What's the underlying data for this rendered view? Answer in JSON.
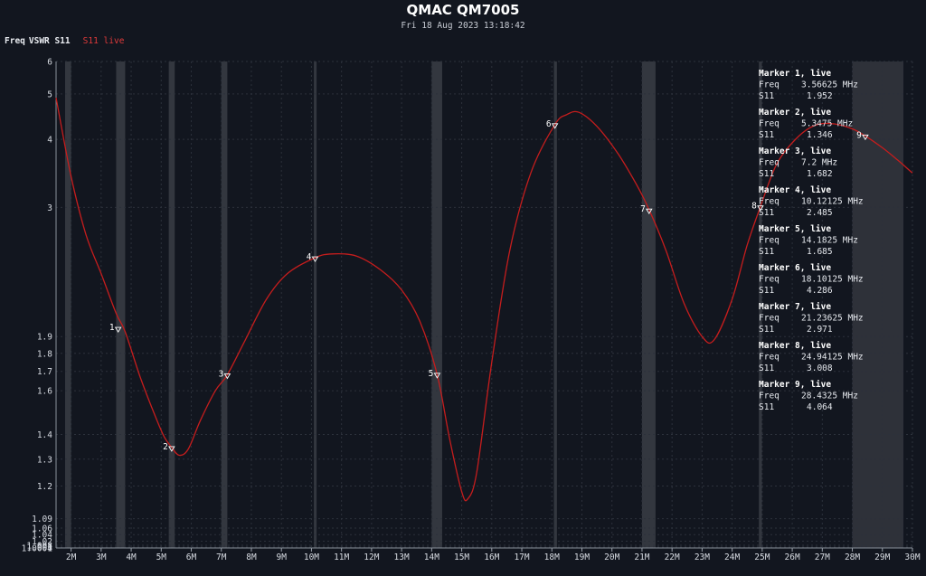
{
  "header": {
    "title": "QMAC QM7005",
    "timestamp": "Fri 18 Aug 2023 13:18:42"
  },
  "legend": {
    "freq_label": "Freq",
    "vswr_label": "VSWR S11",
    "series_label": "S11 live",
    "series_color": "#c51d1d"
  },
  "chart_data": {
    "type": "line",
    "title": "QMAC QM7005",
    "subtitle": "Fri 18 Aug 2023 13:18:42",
    "xlabel": "",
    "ylabel": "",
    "x_unit": "MHz",
    "xlim": [
      1.5,
      30
    ],
    "y_scale": "vswr (reflection coefficient)",
    "ylim": [
      1,
      6
    ],
    "x_ticks": [
      "2M",
      "3M",
      "4M",
      "5M",
      "6M",
      "7M",
      "8M",
      "9M",
      "10M",
      "11M",
      "12M",
      "13M",
      "14M",
      "15M",
      "16M",
      "17M",
      "18M",
      "19M",
      "20M",
      "21M",
      "22M",
      "23M",
      "24M",
      "25M",
      "26M",
      "27M",
      "28M",
      "29M",
      "30M"
    ],
    "y_ticks": [
      "6",
      "5",
      "4",
      "3",
      "1.9",
      "1.8",
      "1.7",
      "1.6",
      "1.4",
      "1.3",
      "1.2",
      "1.09",
      "1.06",
      "1.04",
      "1.02",
      "1.008",
      "1.003",
      "1.0004",
      "1"
    ],
    "grid": true,
    "bands": [
      {
        "start": 1.8,
        "end": 2.0,
        "shade": "dark"
      },
      {
        "start": 3.5,
        "end": 3.8,
        "shade": "dark"
      },
      {
        "start": 5.25,
        "end": 5.45,
        "shade": "dark"
      },
      {
        "start": 7.0,
        "end": 7.2,
        "shade": "dark"
      },
      {
        "start": 10.1,
        "end": 10.15,
        "shade": "dark"
      },
      {
        "start": 14.0,
        "end": 14.35,
        "shade": "dark"
      },
      {
        "start": 18.068,
        "end": 18.168,
        "shade": "dark"
      },
      {
        "start": 21.0,
        "end": 21.45,
        "shade": "dark"
      },
      {
        "start": 24.89,
        "end": 24.99,
        "shade": "dark"
      },
      {
        "start": 28.0,
        "end": 29.7,
        "shade": "light"
      }
    ],
    "series": [
      {
        "name": "S11 live",
        "color": "#c51d1d",
        "x": [
          1.5,
          2.0,
          2.5,
          3.0,
          3.5,
          3.8,
          4.3,
          4.8,
          5.1,
          5.35,
          5.6,
          5.9,
          6.3,
          6.8,
          7.2,
          7.8,
          8.5,
          9.2,
          10.12,
          10.7,
          11.5,
          12.3,
          13.0,
          13.6,
          14.18,
          14.6,
          15.0,
          15.2,
          15.5,
          16.0,
          16.6,
          17.3,
          18.1,
          18.5,
          18.9,
          19.5,
          20.2,
          20.8,
          21.24,
          21.8,
          22.4,
          23.0,
          23.4,
          24.0,
          24.5,
          24.94,
          25.5,
          26.2,
          26.8,
          27.4,
          28.0,
          28.43,
          29.0,
          29.5,
          30.0
        ],
        "y": [
          4.9,
          3.4,
          2.7,
          2.35,
          2.05,
          1.93,
          1.67,
          1.48,
          1.39,
          1.346,
          1.315,
          1.34,
          1.46,
          1.6,
          1.682,
          1.88,
          2.15,
          2.35,
          2.485,
          2.52,
          2.5,
          2.38,
          2.22,
          2.0,
          1.685,
          1.38,
          1.18,
          1.155,
          1.25,
          1.75,
          2.55,
          3.45,
          4.286,
          4.5,
          4.55,
          4.25,
          3.75,
          3.3,
          2.971,
          2.55,
          2.12,
          1.9,
          1.88,
          2.15,
          2.6,
          3.008,
          3.6,
          4.05,
          4.28,
          4.3,
          4.2,
          4.064,
          3.85,
          3.65,
          3.45
        ]
      }
    ],
    "markers": [
      {
        "id": "1",
        "status": "live",
        "freq": "3.56625 MHz",
        "s11": "1.952",
        "x": 3.56625,
        "y": 1.952
      },
      {
        "id": "2",
        "status": "live",
        "freq": "5.3475 MHz",
        "s11": "1.346",
        "x": 5.3475,
        "y": 1.346
      },
      {
        "id": "3",
        "status": "live",
        "freq": "7.2 MHz",
        "s11": "1.682",
        "x": 7.2,
        "y": 1.682
      },
      {
        "id": "4",
        "status": "live",
        "freq": "10.12125 MHz",
        "s11": "2.485",
        "x": 10.12125,
        "y": 2.485
      },
      {
        "id": "5",
        "status": "live",
        "freq": "14.1825 MHz",
        "s11": "1.685",
        "x": 14.1825,
        "y": 1.685
      },
      {
        "id": "6",
        "status": "live",
        "freq": "18.10125 MHz",
        "s11": "4.286",
        "x": 18.10125,
        "y": 4.286
      },
      {
        "id": "7",
        "status": "live",
        "freq": "21.23625 MHz",
        "s11": "2.971",
        "x": 21.23625,
        "y": 2.971
      },
      {
        "id": "8",
        "status": "live",
        "freq": "24.94125 MHz",
        "s11": "3.008",
        "x": 24.94125,
        "y": 3.008
      },
      {
        "id": "9",
        "status": "live",
        "freq": "28.4325 MHz",
        "s11": "4.064",
        "x": 28.4325,
        "y": 4.064
      }
    ],
    "marker_panel": {
      "header_suffix": ", live",
      "header_prefix": "Marker ",
      "freq_label": "Freq",
      "s11_label": "S11"
    }
  }
}
